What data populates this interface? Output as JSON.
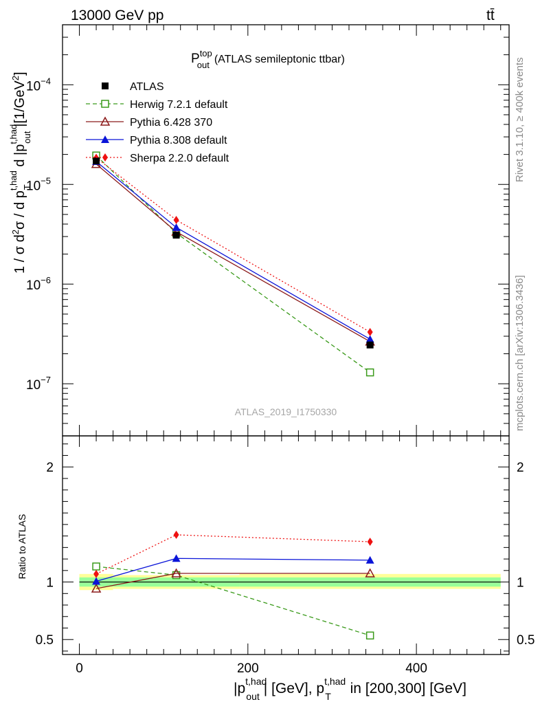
{
  "header": {
    "left": "13000 GeV pp",
    "right": "tt̄"
  },
  "side_labels": {
    "rivet": "Rivet 3.1.10, ≥ 400k events",
    "mcplots": "mcplots.cern.ch [arXiv:1306.3436]"
  },
  "chart_data": [
    {
      "type": "line",
      "panel": "main",
      "title": {
        "base": "P",
        "sup": "top",
        "sub": "out",
        "suffix": "(ATLAS semileptonic ttbar)"
      },
      "watermark": "ATLAS_2019_I1750330",
      "yscale": "log",
      "ylim": [
        3e-08,
        0.0004
      ],
      "xlim": [
        -20,
        510
      ],
      "ylabel": "1 / σ d²σ / d p_T^{t,had} d |p_out^{t,had}| [1/GeV²]",
      "ytick_labels": [
        {
          "value": 1e-07,
          "base": "10",
          "exp": "−7"
        },
        {
          "value": 1e-06,
          "base": "10",
          "exp": "−6"
        },
        {
          "value": 1e-05,
          "base": "10",
          "exp": "−5"
        },
        {
          "value": 0.0001,
          "base": "10",
          "exp": "−4"
        }
      ],
      "x": [
        20,
        115,
        345
      ],
      "series": [
        {
          "name": "ATLAS",
          "style": "data",
          "color": "#000000",
          "marker": "square-filled",
          "values": [
            1.72e-05,
            3.1e-06,
            2.45e-07
          ],
          "band": [
            [
              0,
              40
            ],
            [
              40,
              190
            ],
            [
              190,
              500
            ]
          ]
        },
        {
          "name": "Herwig 7.2.1 default",
          "style": "dashed",
          "color": "#3a9a1a",
          "marker": "square-open",
          "values": [
            1.95e-05,
            3.25e-06,
            1.3e-07
          ]
        },
        {
          "name": "Pythia 6.428 370",
          "style": "solid",
          "color": "#8b1a1a",
          "marker": "triangle-open",
          "values": [
            1.6e-05,
            3.35e-06,
            2.65e-07
          ]
        },
        {
          "name": "Pythia 8.308 default",
          "style": "solid",
          "color": "#0a14d8",
          "marker": "triangle-filled",
          "values": [
            1.7e-05,
            3.7e-06,
            2.8e-07
          ]
        },
        {
          "name": "Sherpa 2.2.0 default",
          "style": "dotted",
          "color": "#ee1111",
          "marker": "diamond-filled",
          "values": [
            1.85e-05,
            4.4e-06,
            3.3e-07
          ]
        }
      ]
    },
    {
      "type": "line",
      "panel": "ratio",
      "ylabel": "Ratio to ATLAS",
      "xlabel": "|p_out^{t,had}| [GeV], p_T^{t,had} in [200,300] [GeV]",
      "ylim": [
        0.37,
        2.27
      ],
      "xlim": [
        -20,
        510
      ],
      "ytick_labels": [
        "2",
        "1",
        "0.5"
      ],
      "xtick_labels": [
        "0",
        "200",
        "400"
      ],
      "bands": [
        {
          "x": [
            0,
            40
          ],
          "yellow": [
            0.93,
            1.07
          ],
          "green": [
            0.96,
            1.04
          ]
        },
        {
          "x": [
            40,
            190
          ],
          "yellow": [
            0.94,
            1.06
          ],
          "green": [
            0.96,
            1.04
          ]
        },
        {
          "x": [
            190,
            500
          ],
          "yellow": [
            0.94,
            1.07
          ],
          "green": [
            0.96,
            1.04
          ]
        }
      ],
      "x": [
        20,
        115,
        345
      ],
      "series": [
        {
          "name": "Herwig 7.2.1 default",
          "values": [
            1.135,
            1.06,
            0.535
          ]
        },
        {
          "name": "Pythia 6.428 370",
          "values": [
            0.943,
            1.075,
            1.075
          ]
        },
        {
          "name": "Pythia 8.308 default",
          "values": [
            1.006,
            1.205,
            1.19
          ]
        },
        {
          "name": "Sherpa 2.2.0 default",
          "values": [
            1.07,
            1.41,
            1.35
          ]
        }
      ]
    }
  ]
}
